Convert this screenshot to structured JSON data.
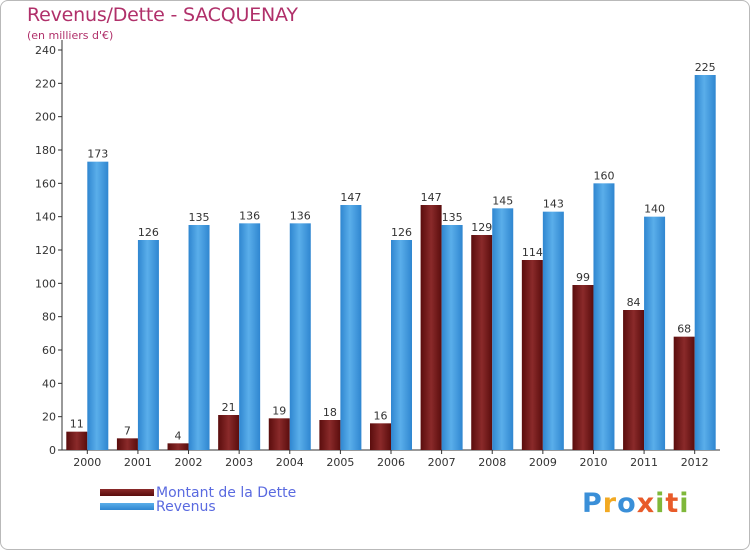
{
  "title": "Revenus/Dette - SACQUENAY",
  "subtitle": "(en milliers d'€)",
  "logo": {
    "text": "Proxiti",
    "letters": [
      "P",
      "r",
      "o",
      "x",
      "i",
      "t",
      "i"
    ],
    "colors": [
      "#3a8fd8",
      "#f2a922",
      "#3a8fd8",
      "#e85b2a",
      "#7fb83a",
      "#e85b2a",
      "#7fb83a"
    ]
  },
  "chart_data": {
    "type": "bar",
    "title": "Revenus/Dette - SACQUENAY",
    "ylabel": "(en milliers d'€)",
    "xlabel": "",
    "categories": [
      "2000",
      "2001",
      "2002",
      "2003",
      "2004",
      "2005",
      "2006",
      "2007",
      "2008",
      "2009",
      "2010",
      "2011",
      "2012"
    ],
    "ylim": [
      0,
      240
    ],
    "yticks": [
      0,
      20,
      40,
      60,
      80,
      100,
      120,
      140,
      160,
      180,
      200,
      220,
      240
    ],
    "grid": false,
    "legend_position": "bottom-left",
    "series": [
      {
        "name": "Montant de la Dette",
        "color": "#6e1313",
        "values": [
          11,
          7,
          4,
          21,
          19,
          18,
          16,
          147,
          129,
          114,
          99,
          84,
          68
        ]
      },
      {
        "name": "Revenus",
        "color": "#3f9be3",
        "values": [
          173,
          126,
          135,
          136,
          136,
          147,
          126,
          135,
          145,
          143,
          160,
          140,
          225
        ]
      }
    ]
  }
}
